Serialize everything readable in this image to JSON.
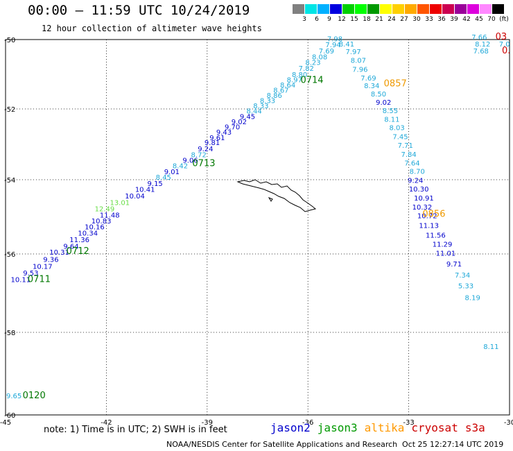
{
  "header": {
    "title": "00:00 — 11:59 UTC 10/24/2019",
    "subtitle": "12 hour collection of altimeter wave heights"
  },
  "colorbar": {
    "labels": [
      "3",
      "6",
      "9",
      "12",
      "15",
      "18",
      "21",
      "24",
      "27",
      "30",
      "33",
      "36",
      "39",
      "42",
      "45",
      "70",
      "(ft)"
    ],
    "colors": [
      "#808080",
      "#00e5e5",
      "#00b0ff",
      "#0000e0",
      "#00d000",
      "#00ff00",
      "#009900",
      "#ffff00",
      "#ffd000",
      "#ffaa00",
      "#ff5500",
      "#ee0000",
      "#cc0050",
      "#990099",
      "#dd00dd",
      "#ff88ff",
      "#000000"
    ]
  },
  "map": {
    "lon_range": [
      -45,
      -30
    ],
    "lat_range": [
      -60,
      -50
    ],
    "lon_ticks": [
      "-45",
      "-42",
      "-39",
      "-36",
      "-33",
      "-30"
    ],
    "lat_ticks": [
      "-50",
      "-52",
      "-54",
      "-56",
      "-58",
      "-60"
    ],
    "colors": {
      "cyan": "#1fa8d8",
      "blue": "#0000cc",
      "green": "#007700",
      "lightgreen": "#66dd44",
      "orange": "#ee9900",
      "red": "#cc0000"
    },
    "track_labels": [
      {
        "text": "0711",
        "c": "green",
        "lon": -44.0,
        "lat": -56.72
      },
      {
        "text": "0712",
        "c": "green",
        "lon": -42.85,
        "lat": -56.0
      },
      {
        "text": "0713",
        "c": "green",
        "lon": -39.1,
        "lat": -53.62
      },
      {
        "text": "0714",
        "c": "green",
        "lon": -35.88,
        "lat": -51.25
      },
      {
        "text": "0857",
        "c": "orange",
        "lon": -33.4,
        "lat": -51.35
      },
      {
        "text": "0856",
        "c": "orange",
        "lon": -32.25,
        "lat": -55.0
      },
      {
        "text": "0120",
        "c": "green",
        "lon": -44.15,
        "lat": -59.6
      },
      {
        "text": "03",
        "c": "red",
        "lon": -30.25,
        "lat": -50.0
      },
      {
        "text": "0.",
        "c": "red",
        "lon": -30.1,
        "lat": -50.4
      }
    ],
    "values": [
      {
        "t": "10.11",
        "c": "blue",
        "lon": -44.55,
        "lat": -56.72
      },
      {
        "t": "9.53",
        "c": "blue",
        "lon": -44.25,
        "lat": -56.55
      },
      {
        "t": "10.17",
        "c": "blue",
        "lon": -43.9,
        "lat": -56.38
      },
      {
        "t": "9.36",
        "c": "blue",
        "lon": -43.65,
        "lat": -56.2
      },
      {
        "t": "10.31",
        "c": "blue",
        "lon": -43.4,
        "lat": -56.02
      },
      {
        "t": "9.64",
        "c": "blue",
        "lon": -43.05,
        "lat": -55.86
      },
      {
        "t": "11.36",
        "c": "blue",
        "lon": -42.8,
        "lat": -55.68
      },
      {
        "t": "10.34",
        "c": "blue",
        "lon": -42.55,
        "lat": -55.5
      },
      {
        "t": "10.16",
        "c": "blue",
        "lon": -42.35,
        "lat": -55.34
      },
      {
        "t": "10.83",
        "c": "blue",
        "lon": -42.15,
        "lat": -55.18
      },
      {
        "t": "11.48",
        "c": "blue",
        "lon": -41.9,
        "lat": -55.02
      },
      {
        "t": "12.49",
        "c": "lightgreen",
        "lon": -42.05,
        "lat": -54.85
      },
      {
        "t": "13.01",
        "c": "lightgreen",
        "lon": -41.6,
        "lat": -54.68
      },
      {
        "t": "10.04",
        "c": "blue",
        "lon": -41.15,
        "lat": -54.5
      },
      {
        "t": "10.41",
        "c": "blue",
        "lon": -40.85,
        "lat": -54.33
      },
      {
        "t": "9.15",
        "c": "blue",
        "lon": -40.55,
        "lat": -54.17
      },
      {
        "t": "8.45",
        "c": "cyan",
        "lon": -40.3,
        "lat": -54.0
      },
      {
        "t": "9.01",
        "c": "blue",
        "lon": -40.05,
        "lat": -53.84
      },
      {
        "t": "8.42",
        "c": "cyan",
        "lon": -39.8,
        "lat": -53.68
      },
      {
        "t": "9.06",
        "c": "blue",
        "lon": -39.5,
        "lat": -53.52
      },
      {
        "t": "8.72",
        "c": "cyan",
        "lon": -39.25,
        "lat": -53.36
      },
      {
        "t": "9.24",
        "c": "blue",
        "lon": -39.05,
        "lat": -53.2
      },
      {
        "t": "9.81",
        "c": "blue",
        "lon": -38.85,
        "lat": -53.02
      },
      {
        "t": "9.61",
        "c": "blue",
        "lon": -38.7,
        "lat": -52.88
      },
      {
        "t": "9.43",
        "c": "blue",
        "lon": -38.5,
        "lat": -52.73
      },
      {
        "t": "9.70",
        "c": "blue",
        "lon": -38.25,
        "lat": -52.58
      },
      {
        "t": "9.02",
        "c": "blue",
        "lon": -38.05,
        "lat": -52.43
      },
      {
        "t": "9.45",
        "c": "blue",
        "lon": -37.8,
        "lat": -52.28
      },
      {
        "t": "8.44",
        "c": "cyan",
        "lon": -37.6,
        "lat": -52.13
      },
      {
        "t": "8.33",
        "c": "cyan",
        "lon": -37.4,
        "lat": -51.98
      },
      {
        "t": "8.33",
        "c": "cyan",
        "lon": -37.2,
        "lat": -51.83
      },
      {
        "t": "8.86",
        "c": "cyan",
        "lon": -37.0,
        "lat": -51.68
      },
      {
        "t": "8.67",
        "c": "cyan",
        "lon": -36.8,
        "lat": -51.53
      },
      {
        "t": "8.64",
        "c": "cyan",
        "lon": -36.6,
        "lat": -51.38
      },
      {
        "t": "8.97",
        "c": "cyan",
        "lon": -36.4,
        "lat": -51.23
      },
      {
        "t": "8.80",
        "c": "cyan",
        "lon": -36.25,
        "lat": -51.08
      },
      {
        "t": "7.82",
        "c": "cyan",
        "lon": -36.05,
        "lat": -50.9
      },
      {
        "t": "8.23",
        "c": "cyan",
        "lon": -35.85,
        "lat": -50.73
      },
      {
        "t": "8.08",
        "c": "cyan",
        "lon": -35.65,
        "lat": -50.57
      },
      {
        "t": "7.69",
        "c": "cyan",
        "lon": -35.45,
        "lat": -50.4
      },
      {
        "t": "7.94",
        "c": "cyan",
        "lon": -35.25,
        "lat": -50.22
      },
      {
        "t": "8.41",
        "c": "cyan",
        "lon": -34.85,
        "lat": -50.2
      },
      {
        "t": "7.98",
        "c": "cyan",
        "lon": -35.2,
        "lat": -50.05
      },
      {
        "t": "7.97",
        "c": "cyan",
        "lon": -34.65,
        "lat": -50.42
      },
      {
        "t": "8.07",
        "c": "cyan",
        "lon": -34.5,
        "lat": -50.67
      },
      {
        "t": "7.96",
        "c": "cyan",
        "lon": -34.45,
        "lat": -50.93
      },
      {
        "t": "7.69",
        "c": "cyan",
        "lon": -34.2,
        "lat": -51.18
      },
      {
        "t": "8.34",
        "c": "cyan",
        "lon": -34.1,
        "lat": -51.4
      },
      {
        "t": "8.50",
        "c": "cyan",
        "lon": -33.9,
        "lat": -51.64
      },
      {
        "t": "9.02",
        "c": "blue",
        "lon": -33.75,
        "lat": -51.88
      },
      {
        "t": "8.55",
        "c": "cyan",
        "lon": -33.55,
        "lat": -52.12
      },
      {
        "t": "8.11",
        "c": "cyan",
        "lon": -33.5,
        "lat": -52.36
      },
      {
        "t": "8.03",
        "c": "cyan",
        "lon": -33.35,
        "lat": -52.6
      },
      {
        "t": "7.45",
        "c": "cyan",
        "lon": -33.25,
        "lat": -52.85
      },
      {
        "t": "7.71",
        "c": "cyan",
        "lon": -33.1,
        "lat": -53.1
      },
      {
        "t": "7.84",
        "c": "cyan",
        "lon": -33.0,
        "lat": -53.35
      },
      {
        "t": "7.64",
        "c": "cyan",
        "lon": -32.9,
        "lat": -53.6
      },
      {
        "t": "8.70",
        "c": "cyan",
        "lon": -32.75,
        "lat": -53.83
      },
      {
        "t": "9.24",
        "c": "blue",
        "lon": -32.8,
        "lat": -54.08
      },
      {
        "t": "10.30",
        "c": "blue",
        "lon": -32.7,
        "lat": -54.32
      },
      {
        "t": "10.91",
        "c": "blue",
        "lon": -32.55,
        "lat": -54.56
      },
      {
        "t": "10.32",
        "c": "blue",
        "lon": -32.6,
        "lat": -54.8
      },
      {
        "t": "10.72",
        "c": "blue",
        "lon": -32.45,
        "lat": -55.04
      },
      {
        "t": "11.13",
        "c": "blue",
        "lon": -32.4,
        "lat": -55.3
      },
      {
        "t": "11.56",
        "c": "blue",
        "lon": -32.2,
        "lat": -55.56
      },
      {
        "t": "11.29",
        "c": "blue",
        "lon": -32.0,
        "lat": -55.8
      },
      {
        "t": "11.01",
        "c": "blue",
        "lon": -31.9,
        "lat": -56.04
      },
      {
        "t": "9.71",
        "c": "blue",
        "lon": -31.65,
        "lat": -56.32
      },
      {
        "t": "7.34",
        "c": "cyan",
        "lon": -31.4,
        "lat": -56.6
      },
      {
        "t": "5.33",
        "c": "cyan",
        "lon": -31.3,
        "lat": -56.88
      },
      {
        "t": "8.19",
        "c": "cyan",
        "lon": -31.1,
        "lat": -57.18
      },
      {
        "t": "7.66",
        "c": "cyan",
        "lon": -30.9,
        "lat": -50.0
      },
      {
        "t": "8.12",
        "c": "cyan",
        "lon": -30.8,
        "lat": -50.2
      },
      {
        "t": "7.68",
        "c": "cyan",
        "lon": -30.85,
        "lat": -50.4
      },
      {
        "t": "7.0",
        "c": "cyan",
        "lon": -30.15,
        "lat": -50.2
      },
      {
        "t": "8.11",
        "c": "cyan",
        "lon": -30.55,
        "lat": -58.4
      },
      {
        "t": "9.65",
        "c": "cyan",
        "lon": -44.75,
        "lat": -59.6
      }
    ]
  },
  "legend": {
    "note": "note: 1) Time is in UTC; 2) SWH is in feet",
    "satellites": [
      {
        "name": "jason2",
        "color": "#0000cc"
      },
      {
        "name": "jason3",
        "color": "#009900"
      },
      {
        "name": "altika",
        "color": "#ff9900"
      },
      {
        "name": "cryosat",
        "color": "#cc0000"
      },
      {
        "name": "s3a",
        "color": "#cc0000"
      }
    ]
  },
  "footer": {
    "credit": "NOAA/NESDIS Center for Satellite Applications and Research",
    "timestamp": "Oct 25 12:27:14 UTC 2019"
  }
}
